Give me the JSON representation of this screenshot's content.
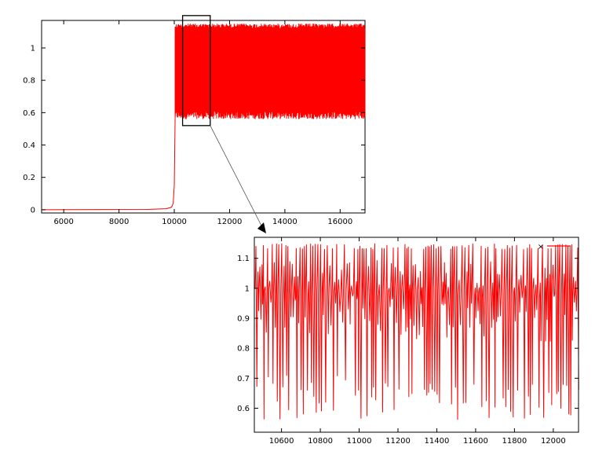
{
  "chart_data": [
    {
      "id": "overview",
      "type": "line",
      "title": "",
      "xlabel": "",
      "ylabel": "",
      "xlim": [
        5200,
        16900
      ],
      "ylim": [
        -0.02,
        1.17
      ],
      "grid": false,
      "x_ticks": [
        6000,
        8000,
        10000,
        12000,
        14000,
        16000
      ],
      "y_ticks": [
        0,
        0.2,
        0.4,
        0.6,
        0.8,
        1
      ],
      "x_tick_labels": [
        "6000",
        "8000",
        "10000",
        "12000",
        "14000",
        "16000"
      ],
      "y_tick_labels": [
        "0",
        "0.2",
        "0.4",
        "0.6",
        "0.8",
        "1"
      ],
      "series": [
        {
          "color": "#ff0000",
          "baseline_segment": {
            "x": [
              5200,
              9000,
              9700,
              9900,
              9960,
              10000,
              10030
            ],
            "y": [
              0.0,
              0.002,
              0.006,
              0.015,
              0.04,
              0.15,
              0.56
            ]
          },
          "oscillation": {
            "x_range": [
              10030,
              16900
            ],
            "min": 0.56,
            "max": 1.15
          }
        }
      ],
      "zoom_box": {
        "x": [
          10300,
          11300
        ],
        "y": [
          0.52,
          1.2
        ]
      }
    },
    {
      "id": "zoom",
      "type": "line",
      "title": "",
      "xlabel": "",
      "ylabel": "",
      "xlim": [
        10460,
        12130
      ],
      "ylim": [
        0.52,
        1.17
      ],
      "grid": false,
      "x_ticks": [
        10600,
        10800,
        11000,
        11200,
        11400,
        11600,
        11800,
        12000
      ],
      "y_ticks": [
        0.6,
        0.7,
        0.8,
        0.9,
        1,
        1.1
      ],
      "x_tick_labels": [
        "10600",
        "10800",
        "11000",
        "11200",
        "11400",
        "11600",
        "11800",
        "12000"
      ],
      "y_tick_labels": [
        "0.6",
        "0.7",
        "0.8",
        "0.9",
        "1",
        "1.1"
      ],
      "legend": {
        "placement": "top-right",
        "marker": "×",
        "color": "#ff0000"
      },
      "series": [
        {
          "color": "#ff0000",
          "oscillation": {
            "x_range": [
              10460,
              12130
            ],
            "min": 0.56,
            "max": 1.15,
            "center": 1.0
          }
        }
      ]
    }
  ]
}
